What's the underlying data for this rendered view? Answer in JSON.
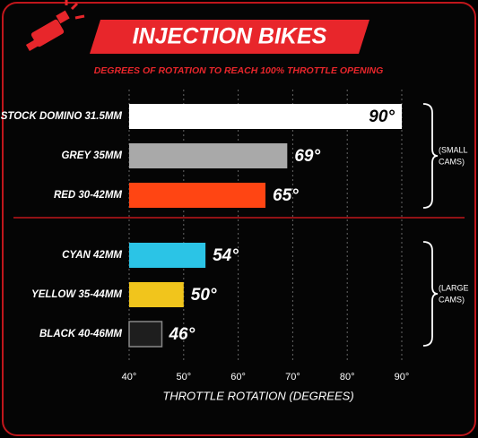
{
  "chart_data": {
    "type": "bar",
    "orientation": "horizontal",
    "title": "INJECTION BIKES",
    "subtitle": "DEGREES OF ROTATION TO REACH 100% THROTTLE OPENING",
    "x_label": "THROTTLE ROTATION (DEGREES)",
    "categories": [
      "STOCK DOMINO 31.5MM",
      "GREY 35MM",
      "RED 30-42MM",
      "CYAN 42MM",
      "YELLOW 35-44MM",
      "BLACK 40-46MM"
    ],
    "values": [
      90,
      69,
      65,
      54,
      50,
      46
    ],
    "value_labels": [
      "90°",
      "69°",
      "65°",
      "54°",
      "50°",
      "46°"
    ],
    "colors": [
      "#ffffff",
      "#a9a9a9",
      "#ff4513",
      "#2bc4e6",
      "#f1c51c",
      "#1e1e1e"
    ],
    "xlim": [
      40,
      90
    ],
    "xticks": [
      {
        "value": 40,
        "label": "40°"
      },
      {
        "value": 50,
        "label": "50°"
      },
      {
        "value": 60,
        "label": "60°"
      },
      {
        "value": 70,
        "label": "70°"
      },
      {
        "value": 80,
        "label": "80°"
      },
      {
        "value": 90,
        "label": "90°"
      }
    ],
    "grid": true,
    "group_labels": [
      [
        "(SMALL",
        "CAMS)"
      ],
      [
        "(LARGE",
        "CAMS)"
      ]
    ]
  }
}
